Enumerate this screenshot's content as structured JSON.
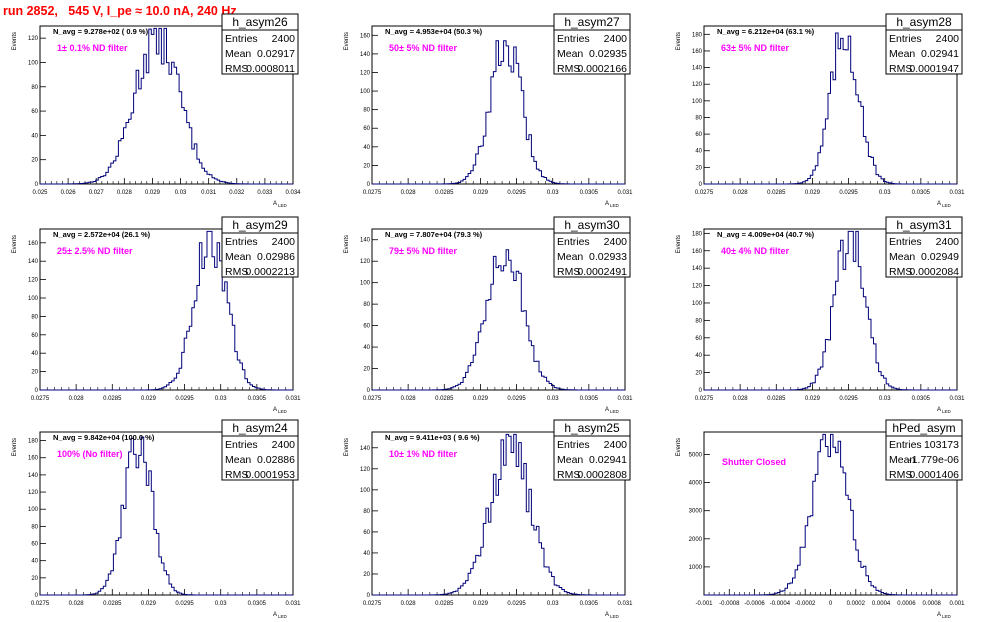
{
  "header": {
    "title": "run 2852,   545 V, I_pe ≈ 10.0 nA, 240 Hz"
  },
  "chart_data": [
    {
      "type": "histogram",
      "name": "h_asym26",
      "stats": {
        "entries_label": "Entries",
        "entries": "2400",
        "mean_label": "Mean",
        "mean": "0.02917",
        "rms_label": "RMS",
        "rms": "0.0008011"
      },
      "navg": "N_avg = 9.278e+02 ( 0.9 %)",
      "filter": "1± 0.1% ND filter",
      "xlim": [
        0.025,
        0.034
      ],
      "ylim": [
        0,
        130
      ],
      "xticks": [
        "0.025",
        "0.026",
        "0.027",
        "0.028",
        "0.029",
        "0.03",
        "0.031",
        "0.032",
        "0.033",
        "0.034"
      ],
      "yticks": [
        0,
        20,
        40,
        60,
        80,
        100,
        120
      ],
      "ylabel": "Events",
      "xlabel": "",
      "center": 0.02917,
      "sigma": 0.0008011,
      "peak": 122
    },
    {
      "type": "histogram",
      "name": "h_asym27",
      "stats": {
        "entries_label": "Entries",
        "entries": "2400",
        "mean_label": "Mean",
        "mean": "0.02935",
        "rms_label": "RMS",
        "rms": "0.0002166"
      },
      "navg": "N_avg = 4.953e+04 (50.3 %)",
      "filter": "50± 5% ND filter",
      "xlim": [
        0.0275,
        0.031
      ],
      "ylim": [
        0,
        170
      ],
      "xticks": [
        "0.0275",
        "0.028",
        "0.0285",
        "0.029",
        "0.0295",
        "0.03",
        "0.0305",
        "0.031"
      ],
      "yticks": [
        0,
        20,
        40,
        60,
        80,
        100,
        120,
        140,
        160
      ],
      "ylabel": "Events",
      "xlabel": "",
      "center": 0.02935,
      "sigma": 0.0002166,
      "peak": 152
    },
    {
      "type": "histogram",
      "name": "h_asym28",
      "stats": {
        "entries_label": "Entries",
        "entries": "2400",
        "mean_label": "Mean",
        "mean": "0.02941",
        "rms_label": "RMS",
        "rms": "0.0001947"
      },
      "navg": "N_avg = 6.212e+04 (63.1 %)",
      "filter": "63± 5% ND filter",
      "xlim": [
        0.0275,
        0.031
      ],
      "ylim": [
        0,
        190
      ],
      "xticks": [
        "0.0275",
        "0.028",
        "0.0285",
        "0.029",
        "0.0295",
        "0.03",
        "0.0305",
        "0.031"
      ],
      "yticks": [
        0,
        20,
        40,
        60,
        80,
        100,
        120,
        140,
        160,
        180
      ],
      "ylabel": "Events",
      "xlabel": "",
      "center": 0.02945,
      "sigma": 0.0001947,
      "peak": 182
    },
    {
      "type": "histogram",
      "name": "h_asym29",
      "stats": {
        "entries_label": "Entries",
        "entries": "2400",
        "mean_label": "Mean",
        "mean": "0.02986",
        "rms_label": "RMS",
        "rms": "0.0002213"
      },
      "navg": "N_avg = 2.572e+04 (26.1 %)",
      "filter": "25± 2.5% ND filter",
      "xlim": [
        0.0275,
        0.031
      ],
      "ylim": [
        0,
        175
      ],
      "xticks": [
        "0.0275",
        "0.028",
        "0.0285",
        "0.029",
        "0.0295",
        "0.03",
        "0.0305",
        "0.031"
      ],
      "yticks": [
        0,
        20,
        40,
        60,
        80,
        100,
        120,
        140,
        160
      ],
      "ylabel": "Events",
      "xlabel": "",
      "center": 0.02986,
      "sigma": 0.0002213,
      "peak": 168
    },
    {
      "type": "histogram",
      "name": "h_asym30",
      "stats": {
        "entries_label": "Entries",
        "entries": "2400",
        "mean_label": "Mean",
        "mean": "0.02933",
        "rms_label": "RMS",
        "rms": "0.0002491"
      },
      "navg": "N_avg = 7.807e+04 (79.3 %)",
      "filter": "79± 5% ND filter",
      "xlim": [
        0.0275,
        0.031
      ],
      "ylim": [
        0,
        150
      ],
      "xticks": [
        "0.0275",
        "0.028",
        "0.0285",
        "0.029",
        "0.0295",
        "0.03",
        "0.0305",
        "0.031"
      ],
      "yticks": [
        0,
        20,
        40,
        60,
        80,
        100,
        120,
        140
      ],
      "ylabel": "Events",
      "xlabel": "",
      "center": 0.02933,
      "sigma": 0.0002491,
      "peak": 136
    },
    {
      "type": "histogram",
      "name": "h_asym31",
      "stats": {
        "entries_label": "Entries",
        "entries": "2400",
        "mean_label": "Mean",
        "mean": "0.02949",
        "rms_label": "RMS",
        "rms": "0.0002084"
      },
      "navg": "N_avg = 4.009e+04 (40.7 %)",
      "filter": "40± 4% ND filter",
      "xlim": [
        0.0275,
        0.031
      ],
      "ylim": [
        0,
        185
      ],
      "xticks": [
        "0.0275",
        "0.028",
        "0.0285",
        "0.029",
        "0.0295",
        "0.03",
        "0.0305",
        "0.031"
      ],
      "yticks": [
        0,
        20,
        40,
        60,
        80,
        100,
        120,
        140,
        160,
        180
      ],
      "ylabel": "Events",
      "xlabel": "",
      "center": 0.02952,
      "sigma": 0.0002084,
      "peak": 175
    },
    {
      "type": "histogram",
      "name": "h_asym24",
      "stats": {
        "entries_label": "Entries",
        "entries": "2400",
        "mean_label": "Mean",
        "mean": "0.02886",
        "rms_label": "RMS",
        "rms": "0.0001953"
      },
      "navg": "N_avg = 9.842e+04 (100.0 %)",
      "filter": "100% (No filter)",
      "xlim": [
        0.0275,
        0.031
      ],
      "ylim": [
        0,
        190
      ],
      "xticks": [
        "0.0275",
        "0.028",
        "0.0285",
        "0.029",
        "0.0295",
        "0.03",
        "0.0305",
        "0.031"
      ],
      "yticks": [
        0,
        20,
        40,
        60,
        80,
        100,
        120,
        140,
        160,
        180
      ],
      "ylabel": "Events",
      "xlabel": "",
      "center": 0.02886,
      "sigma": 0.0001953,
      "peak": 178
    },
    {
      "type": "histogram",
      "name": "h_asym25",
      "stats": {
        "entries_label": "Entries",
        "entries": "2400",
        "mean_label": "Mean",
        "mean": "0.02941",
        "rms_label": "RMS",
        "rms": "0.0002808"
      },
      "navg": "N_avg = 9.411e+03 ( 9.6 %)",
      "filter": "10± 1% ND filter",
      "xlim": [
        0.0275,
        0.031
      ],
      "ylim": [
        0,
        155
      ],
      "xticks": [
        "0.0275",
        "0.028",
        "0.0285",
        "0.029",
        "0.0295",
        "0.03",
        "0.0305",
        "0.031"
      ],
      "yticks": [
        0,
        20,
        40,
        60,
        80,
        100,
        120,
        140
      ],
      "ylabel": "Events",
      "xlabel": "",
      "center": 0.02941,
      "sigma": 0.0002808,
      "peak": 140
    },
    {
      "type": "histogram",
      "name": "hPed_asym",
      "stats": {
        "entries_label": "Entries",
        "entries": "103173",
        "mean_label": "Mean",
        "mean": "-1.779e-06",
        "rms_label": "RMS",
        "rms": "0.0001406"
      },
      "navg": "",
      "filter": "Shutter Closed",
      "xlim": [
        -0.001,
        0.001
      ],
      "ylim": [
        0,
        5800
      ],
      "xticks": [
        "-0.001",
        "-0.0008",
        "-0.0006",
        "-0.0004",
        "-0.0002",
        "0",
        "0.0002",
        "0.0004",
        "0.0006",
        "0.0008",
        "0.001"
      ],
      "yticks": [
        1000,
        2000,
        3000,
        4000,
        5000
      ],
      "ylabel": "Events",
      "xlabel": "",
      "center": 0.0,
      "sigma": 0.0001406,
      "peak": 5550
    }
  ]
}
